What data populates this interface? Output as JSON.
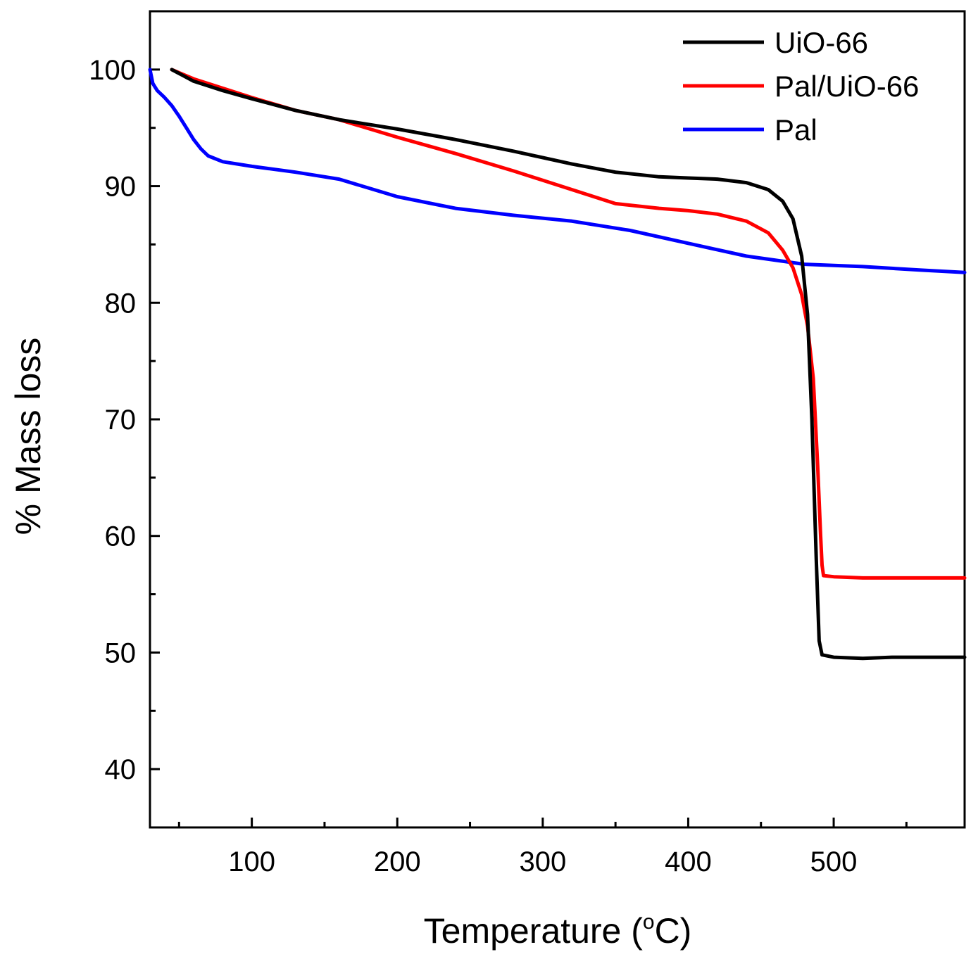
{
  "chart_data": {
    "type": "line",
    "title": "",
    "xlabel": "Temperature  (",
    "xlabel_unit_sup": "o",
    "xlabel_unit": "C)",
    "ylabel": "% Mass loss",
    "xlim": [
      30,
      590
    ],
    "ylim": [
      35,
      105
    ],
    "x_ticks": [
      100,
      200,
      300,
      400,
      500
    ],
    "x_minor_ticks": [
      50,
      150,
      250,
      350,
      450,
      550
    ],
    "y_ticks": [
      40,
      50,
      60,
      70,
      80,
      90,
      100
    ],
    "y_minor_ticks": [
      45,
      55,
      65,
      75,
      85,
      95
    ],
    "grid": false,
    "legend_position": "top-right",
    "series": [
      {
        "name": "UiO-66",
        "color": "#000000",
        "x": [
          45,
          60,
          80,
          100,
          130,
          160,
          200,
          240,
          280,
          320,
          350,
          380,
          400,
          420,
          440,
          455,
          465,
          472,
          478,
          482,
          485,
          487,
          488,
          490,
          492,
          500,
          520,
          540,
          560,
          590
        ],
        "y": [
          100,
          99,
          98.2,
          97.5,
          96.5,
          95.7,
          94.9,
          94.0,
          93.0,
          91.9,
          91.2,
          90.8,
          90.7,
          90.6,
          90.3,
          89.7,
          88.7,
          87.2,
          84.0,
          79.0,
          70.0,
          62.0,
          58.0,
          51.0,
          49.8,
          49.6,
          49.5,
          49.6,
          49.6,
          49.6
        ]
      },
      {
        "name": "Pal/UiO-66",
        "color": "#ff0000",
        "x": [
          45,
          60,
          80,
          100,
          130,
          160,
          200,
          240,
          280,
          320,
          350,
          380,
          400,
          420,
          440,
          455,
          465,
          472,
          478,
          482,
          486,
          489,
          491,
          492,
          493,
          500,
          520,
          550,
          590
        ],
        "y": [
          100,
          99.2,
          98.4,
          97.6,
          96.5,
          95.7,
          94.2,
          92.8,
          91.3,
          89.7,
          88.5,
          88.1,
          87.9,
          87.6,
          87.0,
          86.0,
          84.5,
          83.0,
          80.7,
          78.0,
          73.5,
          66.0,
          60.0,
          57.5,
          56.6,
          56.5,
          56.4,
          56.4,
          56.4
        ]
      },
      {
        "name": "Pal",
        "color": "#0000ff",
        "x": [
          30,
          32,
          35,
          40,
          45,
          50,
          55,
          60,
          65,
          70,
          80,
          100,
          130,
          160,
          200,
          240,
          280,
          320,
          360,
          400,
          440,
          480,
          520,
          560,
          590
        ],
        "y": [
          100,
          98.8,
          98.2,
          97.6,
          96.9,
          96.0,
          95.0,
          94.0,
          93.2,
          92.6,
          92.1,
          91.7,
          91.2,
          90.6,
          89.1,
          88.1,
          87.5,
          87.0,
          86.2,
          85.1,
          84.0,
          83.3,
          83.1,
          82.8,
          82.6
        ]
      }
    ]
  }
}
